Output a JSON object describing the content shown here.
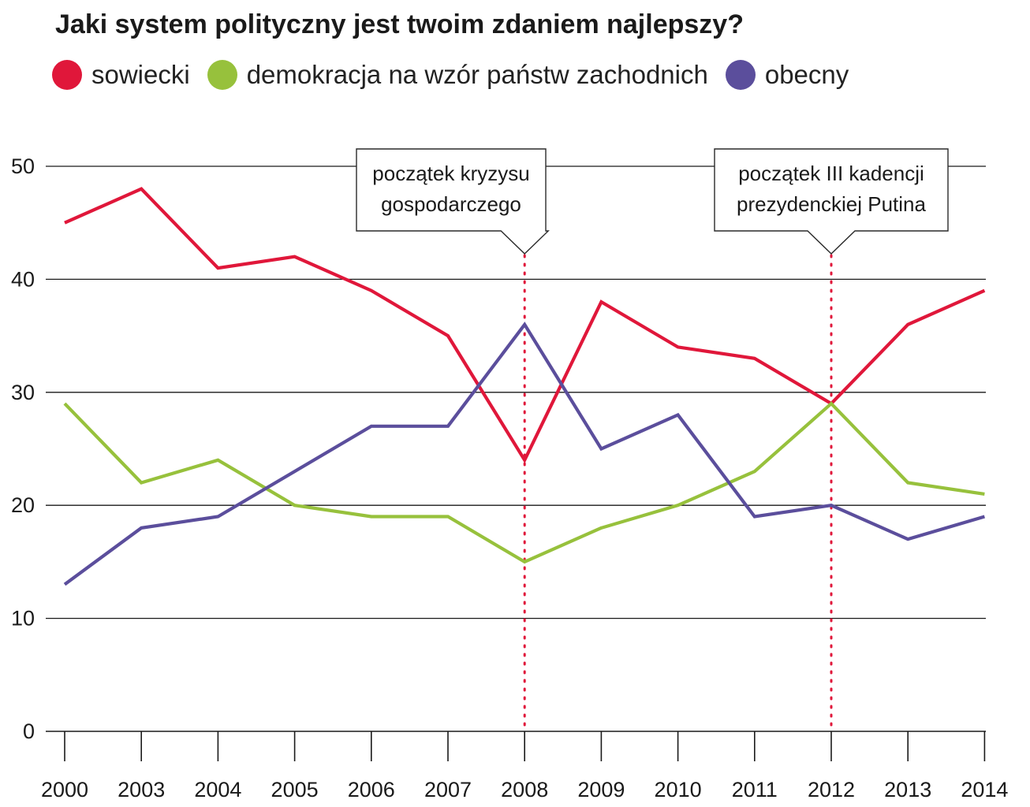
{
  "title": "Jaki system polityczny jest twoim zdaniem najlepszy?",
  "legend": [
    {
      "label": "sowiecki",
      "color": "#e0173a"
    },
    {
      "label": "demokracja na wzór państw zachodnich",
      "color": "#97c13c"
    },
    {
      "label": "obecny",
      "color": "#5b4e9c"
    }
  ],
  "annotations": [
    {
      "lines": [
        "początek kryzysu",
        "gospodarczego"
      ],
      "x": "2008"
    },
    {
      "lines": [
        "początek III kadencji",
        "prezydenckiej Putina"
      ],
      "x": "2012"
    }
  ],
  "chart_data": {
    "type": "line",
    "title": "Jaki system polityczny jest twoim zdaniem najlepszy?",
    "xlabel": "",
    "ylabel": "",
    "categories": [
      "2000",
      "2003",
      "2004",
      "2005",
      "2006",
      "2007",
      "2008",
      "2009",
      "2010",
      "2011",
      "2012",
      "2013",
      "2014"
    ],
    "ylim": [
      0,
      50
    ],
    "yticks": [
      0,
      10,
      20,
      30,
      40,
      50
    ],
    "grid": "horizontal",
    "legend_position": "top",
    "series": [
      {
        "name": "sowiecki",
        "color": "#e0173a",
        "values": [
          45,
          48,
          41,
          42,
          39,
          35,
          24,
          38,
          34,
          33,
          29,
          36,
          39
        ]
      },
      {
        "name": "demokracja na wzór państw zachodnich",
        "color": "#97c13c",
        "values": [
          29,
          22,
          24,
          20,
          19,
          19,
          15,
          18,
          20,
          23,
          29,
          22,
          21
        ]
      },
      {
        "name": "obecny",
        "color": "#5b4e9c",
        "values": [
          13,
          18,
          19,
          23,
          27,
          27,
          36,
          25,
          28,
          19,
          20,
          17,
          19
        ]
      }
    ]
  }
}
